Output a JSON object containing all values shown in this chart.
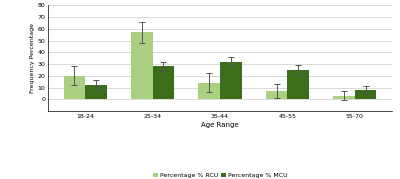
{
  "categories": [
    "18-24",
    "25-34",
    "35-44",
    "45-55",
    "55-70"
  ],
  "rcu_values": [
    20,
    57,
    14,
    7,
    3
  ],
  "mcu_values": [
    12,
    28,
    32,
    25,
    8
  ],
  "rcu_errors": [
    8,
    9,
    8,
    6,
    4
  ],
  "mcu_errors": [
    4,
    4,
    4,
    4,
    3
  ],
  "rcu_color": "#a8d080",
  "mcu_color": "#3a6e1a",
  "ylabel": "Frequency Percentage",
  "xlabel": "Age Range",
  "ylim": [
    -10,
    80
  ],
  "yticks": [
    0,
    10,
    20,
    30,
    40,
    50,
    60,
    70,
    80
  ],
  "legend_rcu": "Percentage % RCU",
  "legend_mcu": "Percentage % MCU",
  "bar_width": 0.32,
  "background_color": "#ffffff",
  "grid_color": "#cccccc"
}
